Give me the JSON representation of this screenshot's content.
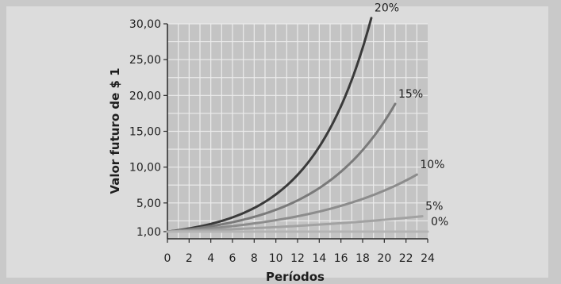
{
  "chart_data": {
    "type": "line",
    "xlabel": "Períodos",
    "ylabel": "Valor futuro de $ 1",
    "xlim": [
      0,
      24
    ],
    "ylim": [
      0,
      30
    ],
    "x_ticks": [
      "0",
      "2",
      "4",
      "6",
      "8",
      "10",
      "12",
      "14",
      "16",
      "18",
      "20",
      "22",
      "24"
    ],
    "y_ticks": [
      {
        "value": 1,
        "label": "1,00"
      },
      {
        "value": 5,
        "label": "5,00"
      },
      {
        "value": 10,
        "label": "10,00"
      },
      {
        "value": 15,
        "label": "15,00"
      },
      {
        "value": 20,
        "label": "20,00"
      },
      {
        "value": 25,
        "label": "25,00"
      },
      {
        "value": 30,
        "label": "30,00"
      }
    ],
    "grid": true,
    "series": [
      {
        "name": "20%",
        "rate": 0.2,
        "x_end": 18.8,
        "color": "#3a3a3a"
      },
      {
        "name": "15%",
        "rate": 0.15,
        "x_end": 21.0,
        "color": "#7a7a7a"
      },
      {
        "name": "10%",
        "rate": 0.1,
        "x_end": 23.0,
        "color": "#8c8c8c"
      },
      {
        "name": "5%",
        "rate": 0.05,
        "x_end": 23.5,
        "color": "#a2a2a2"
      },
      {
        "name": "0%",
        "rate": 0.0,
        "x_end": 24.0,
        "color": "#b4b4b4"
      }
    ]
  }
}
